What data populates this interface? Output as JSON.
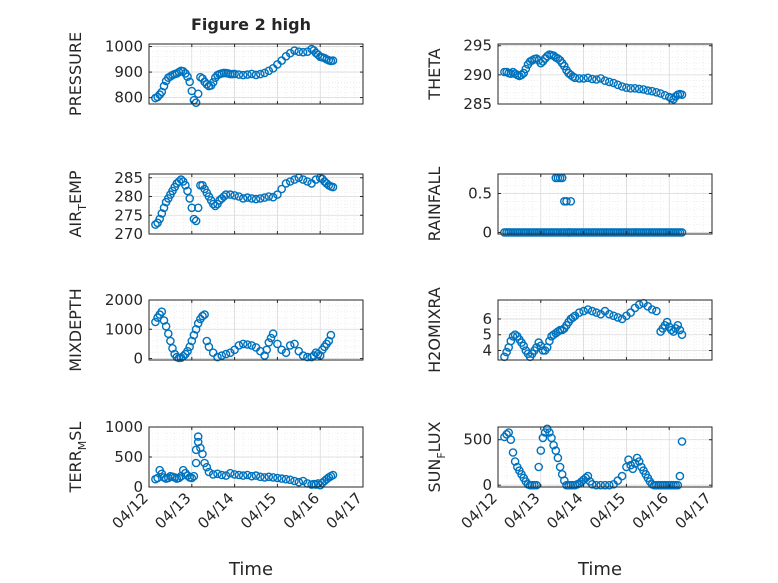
{
  "figure": {
    "title": "Figure 2 high",
    "marker_color": "#0072BD",
    "axis_color": "#262626",
    "grid_color": "#d9d9d9",
    "time_axis": {
      "xlabel": "Time",
      "ticks": [
        "04/12",
        "04/13",
        "04/14",
        "04/15",
        "04/16",
        "04/17"
      ],
      "xlim": [
        0,
        5
      ]
    }
  },
  "chart_data": [
    {
      "type": "scatter",
      "ylabel": "PRESSURE",
      "ylim": [
        775,
        1010
      ],
      "yticks": [
        800,
        900,
        1000
      ],
      "grid": "on (major + minor)",
      "marker": "circle",
      "x": [
        0.15,
        0.2,
        0.25,
        0.3,
        0.35,
        0.4,
        0.45,
        0.5,
        0.55,
        0.6,
        0.65,
        0.7,
        0.75,
        0.8,
        0.85,
        0.9,
        0.95,
        1.0,
        1.05,
        1.1,
        1.15,
        1.2,
        1.25,
        1.3,
        1.35,
        1.4,
        1.45,
        1.5,
        1.55,
        1.6,
        1.65,
        1.7,
        1.75,
        1.8,
        1.85,
        1.9,
        1.95,
        2.0,
        2.1,
        2.2,
        2.3,
        2.4,
        2.5,
        2.6,
        2.7,
        2.8,
        2.9,
        3.0,
        3.1,
        3.2,
        3.3,
        3.4,
        3.5,
        3.6,
        3.7,
        3.8,
        3.85,
        3.9,
        3.95,
        4.0,
        4.05,
        4.1,
        4.15,
        4.2,
        4.25,
        4.3
      ],
      "y": [
        798,
        803,
        812,
        822,
        845,
        865,
        878,
        883,
        888,
        892,
        895,
        900,
        905,
        903,
        895,
        882,
        862,
        826,
        790,
        780,
        815,
        880,
        875,
        862,
        852,
        845,
        848,
        860,
        878,
        888,
        892,
        895,
        897,
        896,
        895,
        892,
        892,
        893,
        890,
        888,
        890,
        893,
        889,
        892,
        897,
        905,
        915,
        930,
        945,
        962,
        974,
        984,
        980,
        978,
        980,
        990,
        985,
        975,
        968,
        960,
        958,
        955,
        950,
        946,
        944,
        945
      ]
    },
    {
      "type": "scatter",
      "ylabel": "THETA",
      "ylim": [
        285,
        295.3
      ],
      "yticks": [
        285,
        290,
        295
      ],
      "grid": "on (major + minor)",
      "marker": "circle",
      "x": [
        0.15,
        0.2,
        0.25,
        0.3,
        0.35,
        0.4,
        0.45,
        0.5,
        0.55,
        0.6,
        0.65,
        0.7,
        0.75,
        0.8,
        0.85,
        0.9,
        0.95,
        1.0,
        1.05,
        1.1,
        1.15,
        1.2,
        1.25,
        1.3,
        1.35,
        1.4,
        1.45,
        1.5,
        1.55,
        1.6,
        1.65,
        1.7,
        1.75,
        1.8,
        1.9,
        2.0,
        2.1,
        2.2,
        2.3,
        2.4,
        2.5,
        2.6,
        2.7,
        2.8,
        2.9,
        3.0,
        3.1,
        3.2,
        3.3,
        3.4,
        3.5,
        3.6,
        3.7,
        3.8,
        3.9,
        4.0,
        4.05,
        4.1,
        4.15,
        4.2,
        4.25,
        4.3
      ],
      "y": [
        290.5,
        290.5,
        290.3,
        290.2,
        290.5,
        290.2,
        290.0,
        289.8,
        290.0,
        290.3,
        291.0,
        291.8,
        292.3,
        292.5,
        292.7,
        292.8,
        292.5,
        292.0,
        292.3,
        292.8,
        293.2,
        293.5,
        293.4,
        293.3,
        293.0,
        292.8,
        292.5,
        292.0,
        291.5,
        290.8,
        290.3,
        290.0,
        289.7,
        289.5,
        289.4,
        289.4,
        289.5,
        289.3,
        289.2,
        289.4,
        289.0,
        288.8,
        288.6,
        288.3,
        288.0,
        287.8,
        287.7,
        287.7,
        287.6,
        287.5,
        287.3,
        287.2,
        287.0,
        286.8,
        286.5,
        286.2,
        286.0,
        285.8,
        286.3,
        286.6,
        286.7,
        286.6
      ]
    },
    {
      "type": "scatter",
      "ylabel": "AIR_TEMP",
      "ylim": [
        270,
        286
      ],
      "yticks": [
        270,
        275,
        280,
        285
      ],
      "grid": "on (major + minor)",
      "marker": "circle",
      "x": [
        0.15,
        0.2,
        0.25,
        0.3,
        0.35,
        0.4,
        0.45,
        0.5,
        0.55,
        0.6,
        0.65,
        0.7,
        0.75,
        0.8,
        0.85,
        0.9,
        0.95,
        1.0,
        1.05,
        1.1,
        1.15,
        1.2,
        1.25,
        1.3,
        1.35,
        1.4,
        1.45,
        1.5,
        1.55,
        1.6,
        1.65,
        1.7,
        1.75,
        1.8,
        1.9,
        2.0,
        2.1,
        2.2,
        2.3,
        2.4,
        2.5,
        2.6,
        2.7,
        2.8,
        2.9,
        3.0,
        3.1,
        3.2,
        3.3,
        3.4,
        3.5,
        3.6,
        3.7,
        3.8,
        3.9,
        4.0,
        4.05,
        4.1,
        4.15,
        4.2,
        4.25,
        4.3
      ],
      "y": [
        272.5,
        273.0,
        274.0,
        275.5,
        277.0,
        278.5,
        279.5,
        280.5,
        281.5,
        282.5,
        283.5,
        284.0,
        284.5,
        284.0,
        283.0,
        281.5,
        279.5,
        277.0,
        274.0,
        273.5,
        277.0,
        283.0,
        283.0,
        282.0,
        281.0,
        280.0,
        279.0,
        278.0,
        277.5,
        278.0,
        279.0,
        279.5,
        280.0,
        280.5,
        280.5,
        280.3,
        280.0,
        279.5,
        279.7,
        279.5,
        279.3,
        279.5,
        279.7,
        280.0,
        279.8,
        280.5,
        282.0,
        283.5,
        284.0,
        284.5,
        285.0,
        284.5,
        284.0,
        283.5,
        284.5,
        285.0,
        284.7,
        284.0,
        283.5,
        283.0,
        282.7,
        282.5
      ]
    },
    {
      "type": "scatter",
      "ylabel": "RAINFALL",
      "ylim": [
        -0.02,
        0.75
      ],
      "yticks": [
        0,
        0.5
      ],
      "grid": "on (major)",
      "marker": "circle",
      "x": [
        0.15,
        0.2,
        0.25,
        0.3,
        0.35,
        0.4,
        0.45,
        0.5,
        0.55,
        0.6,
        0.65,
        0.7,
        0.75,
        0.8,
        0.85,
        0.9,
        0.95,
        1.0,
        1.05,
        1.1,
        1.15,
        1.2,
        1.25,
        1.3,
        1.35,
        1.4,
        1.45,
        1.5,
        1.55,
        1.6,
        1.65,
        1.7,
        1.75,
        1.8,
        1.85,
        1.9,
        1.95,
        2.0,
        2.05,
        2.1,
        2.15,
        2.2,
        2.25,
        2.3,
        2.35,
        2.4,
        2.45,
        2.5,
        2.55,
        2.6,
        2.65,
        2.7,
        2.75,
        2.8,
        2.85,
        2.9,
        2.95,
        3.0,
        3.05,
        3.1,
        3.15,
        3.2,
        3.25,
        3.3,
        3.35,
        3.4,
        3.45,
        3.5,
        3.55,
        3.6,
        3.65,
        3.7,
        3.75,
        3.8,
        3.85,
        3.9,
        3.95,
        4.0,
        4.05,
        4.1,
        4.15,
        4.2,
        4.25,
        4.3,
        1.35,
        1.4,
        1.45,
        1.5,
        1.55,
        1.6,
        1.65,
        1.7
      ],
      "y": [
        0,
        0,
        0,
        0,
        0,
        0,
        0,
        0,
        0,
        0,
        0,
        0,
        0,
        0,
        0,
        0,
        0,
        0,
        0,
        0,
        0,
        0,
        0,
        0,
        0,
        0,
        0,
        0,
        0,
        0,
        0,
        0,
        0,
        0,
        0,
        0,
        0,
        0,
        0,
        0,
        0,
        0,
        0,
        0,
        0,
        0,
        0,
        0,
        0,
        0,
        0,
        0,
        0,
        0,
        0,
        0,
        0,
        0,
        0,
        0,
        0,
        0,
        0,
        0,
        0,
        0,
        0,
        0,
        0,
        0,
        0,
        0,
        0,
        0,
        0,
        0,
        0,
        0,
        0,
        0,
        0,
        0,
        0,
        0,
        0.7,
        0.7,
        0.7,
        0.7,
        0.4,
        0.4,
        0,
        0.4
      ]
    },
    {
      "type": "scatter",
      "ylabel": "MIXDEPTH",
      "ylim": [
        -50,
        2000
      ],
      "yticks": [
        0,
        1000,
        2000
      ],
      "grid": "on (major + minor)",
      "marker": "circle",
      "x": [
        0.15,
        0.2,
        0.25,
        0.3,
        0.35,
        0.4,
        0.45,
        0.5,
        0.55,
        0.6,
        0.65,
        0.7,
        0.75,
        0.8,
        0.85,
        0.9,
        0.95,
        1.0,
        1.05,
        1.1,
        1.15,
        1.2,
        1.25,
        1.3,
        1.35,
        1.4,
        1.5,
        1.6,
        1.7,
        1.8,
        1.9,
        2.0,
        2.1,
        2.2,
        2.3,
        2.4,
        2.5,
        2.6,
        2.7,
        2.75,
        2.8,
        2.85,
        2.9,
        3.0,
        3.1,
        3.2,
        3.3,
        3.4,
        3.5,
        3.6,
        3.7,
        3.8,
        3.85,
        3.9,
        3.95,
        4.0,
        4.05,
        4.1,
        4.15,
        4.2,
        4.25
      ],
      "y": [
        1250,
        1400,
        1500,
        1600,
        1300,
        1100,
        850,
        600,
        350,
        150,
        50,
        20,
        30,
        80,
        150,
        250,
        400,
        600,
        800,
        1000,
        1200,
        1350,
        1450,
        1500,
        600,
        400,
        200,
        50,
        100,
        150,
        200,
        300,
        450,
        500,
        480,
        450,
        380,
        250,
        100,
        300,
        550,
        700,
        850,
        500,
        300,
        200,
        450,
        500,
        250,
        100,
        50,
        50,
        100,
        200,
        150,
        100,
        300,
        400,
        500,
        600,
        800
      ]
    },
    {
      "type": "scatter",
      "ylabel": "H2OMIXRA",
      "ylim": [
        3.4,
        7.2
      ],
      "yticks": [
        4,
        5,
        6
      ],
      "grid": "on (major + minor)",
      "marker": "circle",
      "x": [
        0.15,
        0.2,
        0.25,
        0.3,
        0.35,
        0.4,
        0.45,
        0.5,
        0.55,
        0.6,
        0.65,
        0.7,
        0.75,
        0.8,
        0.85,
        0.9,
        0.95,
        1.0,
        1.05,
        1.1,
        1.15,
        1.2,
        1.25,
        1.3,
        1.35,
        1.4,
        1.45,
        1.5,
        1.55,
        1.6,
        1.65,
        1.7,
        1.75,
        1.8,
        1.9,
        2.0,
        2.1,
        2.2,
        2.3,
        2.4,
        2.5,
        2.6,
        2.7,
        2.8,
        2.9,
        3.0,
        3.1,
        3.2,
        3.3,
        3.4,
        3.5,
        3.6,
        3.7,
        3.8,
        3.85,
        3.9,
        3.95,
        4.0,
        4.05,
        4.1,
        4.15,
        4.2,
        4.25,
        4.3
      ],
      "y": [
        3.6,
        3.9,
        4.2,
        4.6,
        4.9,
        5.0,
        4.9,
        4.7,
        4.5,
        4.3,
        4.0,
        3.8,
        3.6,
        3.8,
        4.0,
        4.2,
        4.5,
        4.3,
        4.0,
        4.0,
        4.2,
        4.6,
        4.9,
        5.0,
        5.1,
        5.2,
        5.3,
        5.3,
        5.4,
        5.6,
        5.8,
        6.0,
        6.1,
        6.2,
        6.4,
        6.5,
        6.6,
        6.5,
        6.4,
        6.3,
        6.5,
        6.3,
        6.2,
        6.1,
        6.0,
        6.2,
        6.4,
        6.7,
        6.9,
        7.0,
        6.8,
        6.6,
        6.5,
        5.2,
        5.4,
        5.6,
        5.8,
        5.5,
        5.3,
        5.2,
        5.4,
        5.6,
        5.3,
        5.0
      ]
    },
    {
      "type": "scatter",
      "ylabel": "TERR_MSL",
      "ylim": [
        0,
        1000
      ],
      "yticks": [
        0,
        500,
        1000
      ],
      "grid": "on (major + minor)",
      "marker": "circle",
      "x": [
        0.15,
        0.2,
        0.25,
        0.3,
        0.35,
        0.4,
        0.45,
        0.5,
        0.55,
        0.6,
        0.65,
        0.7,
        0.75,
        0.8,
        0.85,
        0.9,
        0.95,
        1.0,
        1.05,
        1.1,
        1.1,
        1.15,
        1.15,
        1.2,
        1.25,
        1.3,
        1.35,
        1.4,
        1.5,
        1.6,
        1.7,
        1.8,
        1.9,
        2.0,
        2.1,
        2.2,
        2.3,
        2.4,
        2.5,
        2.6,
        2.7,
        2.8,
        2.9,
        3.0,
        3.1,
        3.2,
        3.3,
        3.4,
        3.5,
        3.6,
        3.7,
        3.8,
        3.85,
        3.9,
        3.95,
        4.0,
        4.05,
        4.1,
        4.15,
        4.2,
        4.25,
        4.3
      ],
      "y": [
        130,
        150,
        280,
        220,
        160,
        140,
        150,
        180,
        170,
        160,
        140,
        150,
        180,
        280,
        230,
        190,
        160,
        150,
        180,
        400,
        620,
        750,
        840,
        650,
        550,
        400,
        330,
        250,
        210,
        220,
        200,
        190,
        230,
        210,
        200,
        190,
        200,
        180,
        190,
        170,
        160,
        170,
        160,
        150,
        140,
        130,
        120,
        100,
        80,
        100,
        60,
        40,
        50,
        40,
        60,
        30,
        70,
        100,
        130,
        160,
        180,
        200
      ]
    },
    {
      "type": "scatter",
      "ylabel": "SUN_FLUX",
      "ylim": [
        -20,
        640
      ],
      "yticks": [
        0,
        500
      ],
      "grid": "on (major + minor)",
      "marker": "circle",
      "x": [
        0.15,
        0.2,
        0.25,
        0.3,
        0.35,
        0.4,
        0.45,
        0.5,
        0.55,
        0.6,
        0.65,
        0.7,
        0.75,
        0.8,
        0.85,
        0.9,
        0.95,
        1.0,
        1.05,
        1.1,
        1.15,
        1.2,
        1.25,
        1.3,
        1.35,
        1.4,
        1.45,
        1.5,
        1.55,
        1.6,
        1.65,
        1.7,
        1.75,
        1.8,
        1.85,
        1.9,
        1.95,
        2.0,
        2.05,
        2.1,
        2.15,
        2.2,
        2.3,
        2.4,
        2.5,
        2.6,
        2.7,
        2.8,
        2.9,
        3.0,
        3.05,
        3.1,
        3.15,
        3.2,
        3.25,
        3.3,
        3.35,
        3.4,
        3.45,
        3.5,
        3.55,
        3.6,
        3.65,
        3.7,
        3.75,
        3.8,
        3.85,
        3.9,
        3.95,
        4.0,
        4.05,
        4.1,
        4.15,
        4.2,
        4.25,
        4.3
      ],
      "y": [
        530,
        560,
        580,
        500,
        360,
        260,
        200,
        160,
        120,
        80,
        40,
        10,
        0,
        0,
        0,
        0,
        200,
        380,
        520,
        580,
        620,
        580,
        520,
        440,
        380,
        300,
        200,
        120,
        50,
        0,
        0,
        0,
        0,
        0,
        10,
        20,
        40,
        60,
        80,
        100,
        40,
        10,
        0,
        0,
        0,
        0,
        10,
        50,
        100,
        200,
        280,
        220,
        180,
        240,
        300,
        260,
        200,
        160,
        120,
        80,
        40,
        10,
        0,
        0,
        0,
        0,
        0,
        0,
        0,
        0,
        0,
        0,
        0,
        0,
        100,
        480
      ]
    }
  ],
  "panels": [
    {
      "ylabel_main": "PRESSURE",
      "ylabel_sub": "",
      "ylabel_tail": "",
      "ytick_labels": [
        "800",
        "900",
        "1000"
      ]
    },
    {
      "ylabel_main": "THETA",
      "ylabel_sub": "",
      "ylabel_tail": "",
      "ytick_labels": [
        "285",
        "290",
        "295"
      ]
    },
    {
      "ylabel_main": "AIR",
      "ylabel_sub": "T",
      "ylabel_tail": "EMP",
      "ytick_labels": [
        "270",
        "275",
        "280",
        "285"
      ]
    },
    {
      "ylabel_main": "RAINFALL",
      "ylabel_sub": "",
      "ylabel_tail": "",
      "ytick_labels": [
        "0",
        "0.5"
      ]
    },
    {
      "ylabel_main": "MIXDEPTH",
      "ylabel_sub": "",
      "ylabel_tail": "",
      "ytick_labels": [
        "0",
        "1000",
        "2000"
      ]
    },
    {
      "ylabel_main": "H2OMIXRA",
      "ylabel_sub": "",
      "ylabel_tail": "",
      "ytick_labels": [
        "4",
        "5",
        "6"
      ]
    },
    {
      "ylabel_main": "TERR",
      "ylabel_sub": "M",
      "ylabel_tail": "SL",
      "ytick_labels": [
        "0",
        "500",
        "1000"
      ]
    },
    {
      "ylabel_main": "SUN",
      "ylabel_sub": "F",
      "ylabel_tail": "LUX",
      "ytick_labels": [
        "0",
        "500"
      ]
    }
  ]
}
